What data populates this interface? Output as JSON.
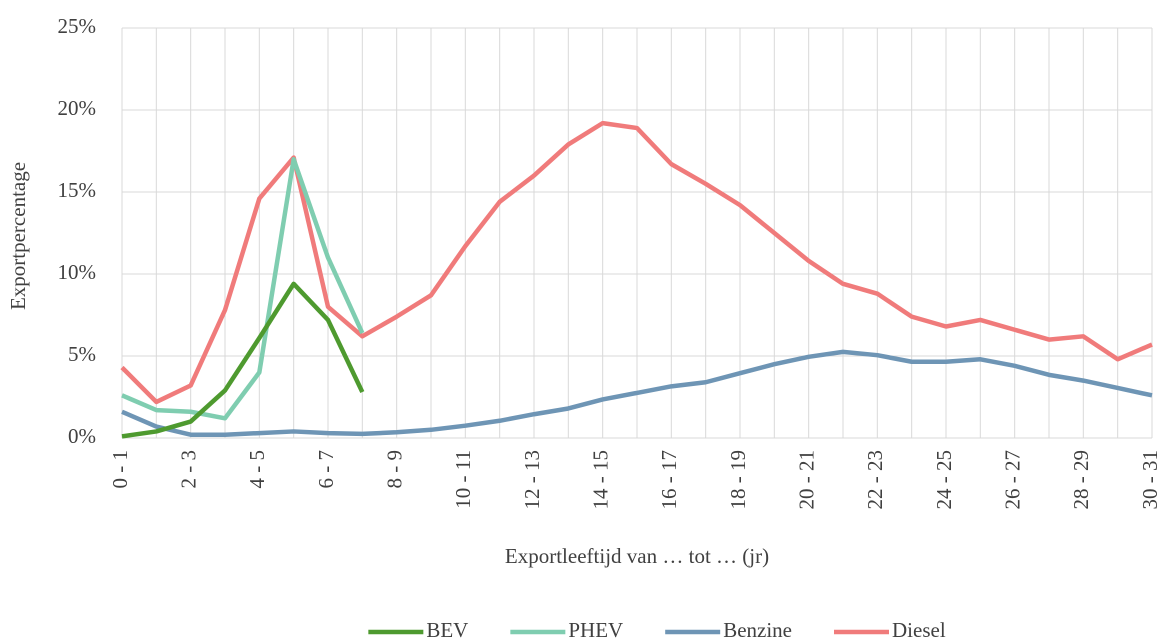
{
  "chart_data": {
    "type": "line",
    "x_label": "Exportleeftijd van … tot … (jr)",
    "y_label": "Exportpercentage",
    "categories": [
      "0 - 1",
      null,
      "2 - 3",
      null,
      "4 - 5",
      null,
      "6 - 7",
      null,
      "8 - 9",
      null,
      "10 - 11",
      null,
      "12 - 13",
      null,
      "14 - 15",
      null,
      "16 - 17",
      null,
      "18 - 19",
      null,
      "20 - 21",
      null,
      "22 - 23",
      null,
      "24 - 25",
      null,
      "26 - 27",
      null,
      "28 - 29",
      null,
      "30 - 31"
    ],
    "series": [
      {
        "name": "BEV",
        "color": "#4e9a2f",
        "values": [
          0.1,
          0.4,
          1.0,
          2.9,
          6.1,
          9.4,
          7.2,
          2.8,
          null,
          null,
          null,
          null,
          null,
          null,
          null,
          null,
          null,
          null,
          null,
          null,
          null,
          null,
          null,
          null,
          null,
          null,
          null,
          null,
          null,
          null,
          null
        ]
      },
      {
        "name": "PHEV",
        "color": "#7fcdb0",
        "values": [
          2.6,
          1.7,
          1.6,
          1.2,
          4.0,
          17.0,
          11.0,
          6.4,
          null,
          null,
          null,
          null,
          null,
          null,
          null,
          null,
          null,
          null,
          null,
          null,
          null,
          null,
          null,
          null,
          null,
          null,
          null,
          null,
          null,
          null,
          null
        ]
      },
      {
        "name": "Benzine",
        "color": "#6e95b5",
        "values": [
          1.6,
          0.7,
          0.2,
          0.2,
          0.3,
          0.4,
          0.3,
          0.25,
          0.35,
          0.5,
          0.75,
          1.05,
          1.45,
          1.8,
          2.35,
          2.75,
          3.15,
          3.4,
          3.95,
          4.5,
          4.95,
          5.25,
          5.05,
          4.65,
          4.65,
          4.8,
          4.4,
          3.85,
          3.5,
          3.05,
          2.6
        ]
      },
      {
        "name": "Diesel",
        "color": "#f07b7b",
        "values": [
          4.3,
          2.2,
          3.2,
          7.8,
          14.6,
          17.1,
          8.0,
          6.2,
          7.4,
          8.7,
          11.7,
          14.4,
          16.0,
          17.9,
          19.2,
          18.9,
          16.7,
          15.5,
          14.2,
          12.5,
          10.8,
          9.4,
          8.8,
          7.4,
          6.8,
          7.2,
          6.6,
          6.0,
          6.2,
          4.8,
          5.7
        ]
      }
    ],
    "ylim": [
      0,
      25
    ],
    "yticks": [
      {
        "value": 0,
        "label": "0%"
      },
      {
        "value": 5,
        "label": "5%"
      },
      {
        "value": 10,
        "label": "10%"
      },
      {
        "value": 15,
        "label": "15%"
      },
      {
        "value": 20,
        "label": "20%"
      },
      {
        "value": 25,
        "label": "25%"
      }
    ],
    "grid": true,
    "legend": "bottom"
  }
}
